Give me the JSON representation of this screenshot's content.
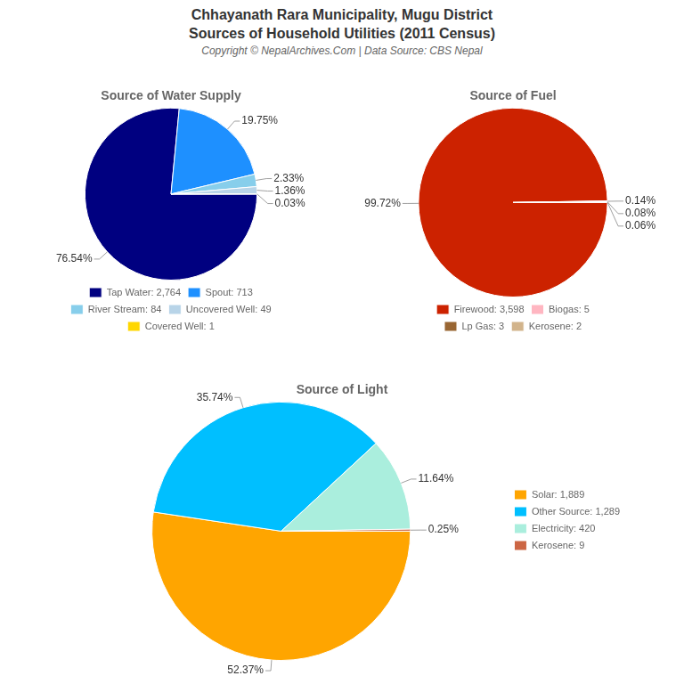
{
  "title": "Chhayanath Rara Municipality, Mugu District\nSources of Household Utilities (2011 Census)",
  "subtitle": "Copyright © NepalArchives.Com | Data Source: CBS Nepal",
  "chart_data": [
    {
      "type": "pie",
      "title": "Source of Water Supply",
      "categories": [
        "Tap Water: 2,764",
        "Spout: 713",
        "River Stream: 84",
        "Uncovered Well: 49",
        "Covered Well: 1"
      ],
      "values": [
        76.54,
        19.75,
        2.33,
        1.36,
        0.03
      ],
      "value_labels": [
        "76.54%",
        "19.75%",
        "2.33%",
        "1.36%",
        "0.03%"
      ],
      "colors": [
        "#000080",
        "#1E90FF",
        "#87CEEB",
        "#B8D4E8",
        "#FFD700"
      ],
      "data_labels": true,
      "legend": "bottom"
    },
    {
      "type": "pie",
      "title": "Source of Fuel",
      "categories": [
        "Firewood: 3,598",
        "Biogas: 5",
        "Lp Gas: 3",
        "Kerosene: 2"
      ],
      "values": [
        99.72,
        0.14,
        0.08,
        0.06
      ],
      "value_labels": [
        "99.72%",
        "0.14%",
        "0.08%",
        "0.06%"
      ],
      "colors": [
        "#CC2200",
        "#FFB6C1",
        "#996633",
        "#D2B48C"
      ],
      "data_labels": true,
      "legend": "bottom"
    },
    {
      "type": "pie",
      "title": "Source of Light",
      "categories": [
        "Solar: 1,889",
        "Other Source: 1,289",
        "Electricity: 420",
        "Kerosene: 9"
      ],
      "values": [
        52.37,
        35.74,
        11.64,
        0.25
      ],
      "value_labels": [
        "52.37%",
        "35.74%",
        "11.64%",
        "0.25%"
      ],
      "colors": [
        "#FFA500",
        "#00BFFF",
        "#AAEEDD",
        "#CC6644"
      ],
      "data_labels": true,
      "legend": "right"
    }
  ]
}
